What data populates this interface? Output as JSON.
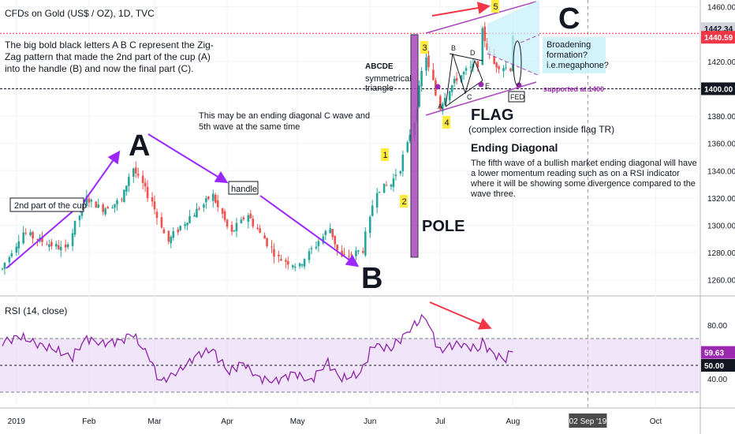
{
  "header": {
    "title": "CFDs on Gold (US$ / OZ), 1D, TVC"
  },
  "price_axis": {
    "ticks": [
      "1460.00",
      "1440.00",
      "1420.00",
      "1400.00",
      "1380.00",
      "1360.00",
      "1340.00",
      "1320.00",
      "1300.00",
      "1280.00",
      "1260.00"
    ],
    "tags": [
      {
        "text": "1442.34",
        "color": "#d1d4dc"
      },
      {
        "text": "1440.59",
        "color": "#f23645"
      },
      {
        "text": "1400.00",
        "color": "#131722"
      }
    ]
  },
  "rsi_panel": {
    "title": "RSI (14, close)",
    "ticks": [
      "80.00",
      "40.00"
    ],
    "tags": [
      {
        "text": "59.63",
        "color": "#9c27b0"
      },
      {
        "text": "50.00",
        "color": "#131722"
      }
    ]
  },
  "time_axis": {
    "ticks": [
      "2019",
      "Feb",
      "Mar",
      "Apr",
      "May",
      "Jun",
      "Jul",
      "Aug",
      "Oct"
    ],
    "highlight": "02 Sep '19"
  },
  "annotations": {
    "intro": [
      "The big bold black letters A B C represent the Zig-",
      "Zag pattern that made the 2nd part of the cup (A)",
      "into the handle (B) and now the final part (C)."
    ],
    "ending_c": [
      "This may be an ending diagonal C wave and",
      "5th wave at the same time"
    ],
    "cup": "2nd part of the cup",
    "handle": "handle",
    "big_a": "A",
    "big_b": "B",
    "big_c": "C",
    "pole": "POLE",
    "flag": "FLAG",
    "flag_note": "(complex correction inside flag TR)",
    "abcde": "ABCDE",
    "symmetrical": [
      "symmetrical",
      "triangle"
    ],
    "broadening": [
      "Broadening",
      "formation?",
      "i.e.megaphone?"
    ],
    "supported": "supported at 1400",
    "fed": "FED",
    "ending_title": "Ending Diagonal",
    "ending_text": [
      "The fifth wave of a bullish market ending diagonal will have",
      "a lower momentum reading such as on a RSI indicator",
      "where it will be showing some divergence compared to the",
      "wave three."
    ],
    "waves": [
      "1",
      "2",
      "3",
      "4",
      "5"
    ],
    "tri_letters": [
      "A",
      "B",
      "C",
      "D",
      "E"
    ]
  },
  "colors": {
    "up": "#26a69a",
    "down": "#ef5350",
    "purple": "#9c27b0",
    "arrow_purple": "#9c27ff",
    "arrow_red": "#f23645",
    "rsi_line": "#8e24aa",
    "rsi_band": "#e7d4f5",
    "wave_box": "#ffeb3b",
    "broad_fill": "#c8f0fa"
  },
  "chart_data": [
    {
      "type": "candlestick",
      "title": "CFDs on Gold (US$ / OZ), 1D, TVC",
      "ylim": [
        1250,
        1465
      ],
      "x_range": [
        "2018-12-25",
        "2019-10-20"
      ],
      "path_points": [
        [
          "2018-12-26",
          1268
        ],
        [
          "2019-01-04",
          1295
        ],
        [
          "2019-01-10",
          1290
        ],
        [
          "2019-01-22",
          1282
        ],
        [
          "2019-01-31",
          1320
        ],
        [
          "2019-02-07",
          1312
        ],
        [
          "2019-02-15",
          1318
        ],
        [
          "2019-02-20",
          1342
        ],
        [
          "2019-02-28",
          1318
        ],
        [
          "2019-03-07",
          1288
        ],
        [
          "2019-03-14",
          1302
        ],
        [
          "2019-03-26",
          1322
        ],
        [
          "2019-04-03",
          1294
        ],
        [
          "2019-04-10",
          1308
        ],
        [
          "2019-04-23",
          1276
        ],
        [
          "2019-05-02",
          1270
        ],
        [
          "2019-05-15",
          1298
        ],
        [
          "2019-05-20",
          1276
        ],
        [
          "2019-05-29",
          1282
        ],
        [
          "2019-06-04",
          1326
        ],
        [
          "2019-06-10",
          1330
        ],
        [
          "2019-06-14",
          1342
        ],
        [
          "2019-06-20",
          1376
        ],
        [
          "2019-06-25",
          1424
        ],
        [
          "2019-07-01",
          1386
        ],
        [
          "2019-07-05",
          1400
        ],
        [
          "2019-07-10",
          1410
        ],
        [
          "2019-07-17",
          1418
        ],
        [
          "2019-07-19",
          1442
        ],
        [
          "2019-07-24",
          1418
        ],
        [
          "2019-07-31",
          1415
        ],
        [
          "2019-08-01",
          1440
        ]
      ],
      "last_close": 1440.59,
      "last_price": 1442.34,
      "support": 1400
    },
    {
      "type": "line",
      "title": "RSI (14, close)",
      "ylim": [
        20,
        100
      ],
      "bands": [
        70,
        30
      ],
      "midline": 50,
      "last": 59.63,
      "points": [
        [
          "2018-12-26",
          67
        ],
        [
          "2019-01-03",
          72
        ],
        [
          "2019-01-10",
          66
        ],
        [
          "2019-01-18",
          62
        ],
        [
          "2019-01-25",
          56
        ],
        [
          "2019-01-31",
          70
        ],
        [
          "2019-02-07",
          66
        ],
        [
          "2019-02-15",
          68
        ],
        [
          "2019-02-20",
          74
        ],
        [
          "2019-02-27",
          56
        ],
        [
          "2019-03-04",
          38
        ],
        [
          "2019-03-12",
          46
        ],
        [
          "2019-03-20",
          58
        ],
        [
          "2019-03-26",
          62
        ],
        [
          "2019-04-02",
          45
        ],
        [
          "2019-04-08",
          52
        ],
        [
          "2019-04-15",
          40
        ],
        [
          "2019-04-22",
          38
        ],
        [
          "2019-04-30",
          44
        ],
        [
          "2019-05-07",
          38
        ],
        [
          "2019-05-14",
          52
        ],
        [
          "2019-05-20",
          40
        ],
        [
          "2019-05-28",
          44
        ],
        [
          "2019-06-03",
          66
        ],
        [
          "2019-06-10",
          62
        ],
        [
          "2019-06-17",
          74
        ],
        [
          "2019-06-20",
          80
        ],
        [
          "2019-06-25",
          86
        ],
        [
          "2019-07-01",
          60
        ],
        [
          "2019-07-05",
          64
        ],
        [
          "2019-07-10",
          66
        ],
        [
          "2019-07-17",
          62
        ],
        [
          "2019-07-19",
          68
        ],
        [
          "2019-07-24",
          58
        ],
        [
          "2019-07-29",
          55
        ],
        [
          "2019-08-01",
          60
        ]
      ]
    }
  ]
}
